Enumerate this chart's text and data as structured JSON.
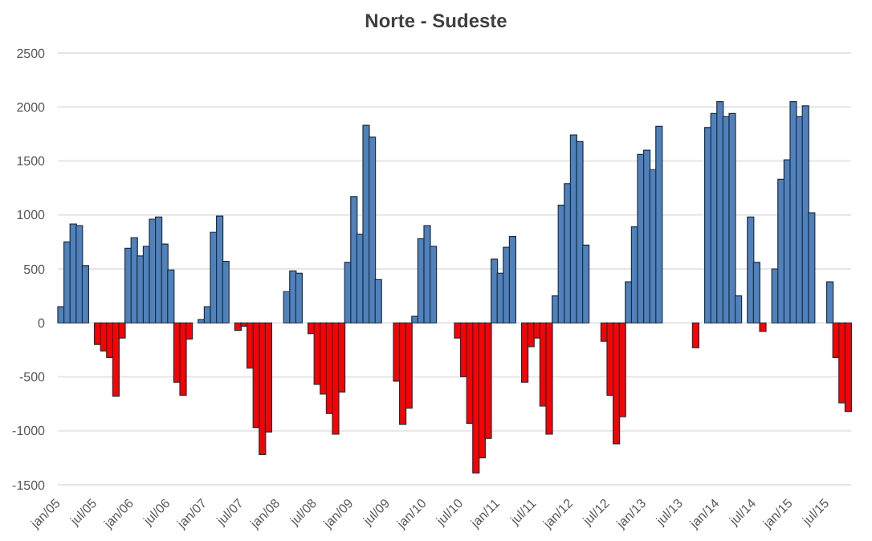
{
  "chart_data": {
    "type": "bar",
    "title": "Norte - Sudeste",
    "stacked": true,
    "grid": "y",
    "ylim": [
      -1500,
      2500
    ],
    "yticks": [
      -1500,
      -1000,
      -500,
      0,
      500,
      1000,
      1500,
      2000,
      2500
    ],
    "categories": [
      "jan/05",
      null,
      null,
      null,
      null,
      null,
      "jul/05",
      null,
      null,
      null,
      null,
      null,
      "jan/06",
      null,
      null,
      null,
      null,
      null,
      "jul/06",
      null,
      null,
      null,
      null,
      null,
      "jan/07",
      null,
      null,
      null,
      null,
      null,
      "jul/07",
      null,
      null,
      null,
      null,
      null,
      "jan/08",
      null,
      null,
      null,
      null,
      null,
      "jul/08",
      null,
      null,
      null,
      null,
      null,
      "jan/09",
      null,
      null,
      null,
      null,
      null,
      "jul/09",
      null,
      null,
      null,
      null,
      null,
      "jan/10",
      null,
      null,
      null,
      null,
      null,
      "jul/10",
      null,
      null,
      null,
      null,
      null,
      "jan/11",
      null,
      null,
      null,
      null,
      null,
      "jul/11",
      null,
      null,
      null,
      null,
      null,
      "jan/12",
      null,
      null,
      null,
      null,
      null,
      "jul/12",
      null,
      null,
      null,
      null,
      null,
      "jan/13",
      null,
      null,
      null,
      null,
      null,
      "jul/13",
      null,
      null,
      null,
      null,
      null,
      "jan/14",
      null,
      null,
      null,
      null,
      null,
      "jul/14",
      null,
      null,
      null,
      null,
      null,
      "jan/15",
      null,
      null,
      null,
      null,
      null,
      "jul/15",
      null,
      null,
      null
    ],
    "series": [
      {
        "color": "#4f81bd",
        "values": [
          150,
          750,
          915,
          900,
          530,
          null,
          null,
          null,
          null,
          null,
          null,
          690,
          790,
          620,
          710,
          960,
          980,
          730,
          490,
          null,
          null,
          null,
          null,
          30,
          150,
          840,
          990,
          570,
          null,
          null,
          null,
          null,
          null,
          null,
          null,
          null,
          null,
          290,
          480,
          460,
          null,
          null,
          null,
          null,
          null,
          null,
          null,
          560,
          1170,
          820,
          1830,
          1720,
          400,
          null,
          null,
          null,
          null,
          null,
          60,
          780,
          900,
          710,
          null,
          null,
          null,
          null,
          null,
          null,
          null,
          null,
          null,
          590,
          460,
          700,
          800,
          null,
          null,
          null,
          null,
          null,
          null,
          250,
          1090,
          1290,
          1740,
          1680,
          720,
          null,
          null,
          null,
          null,
          null,
          null,
          380,
          890,
          1560,
          1600,
          1420,
          1820,
          null,
          null,
          null,
          null,
          null,
          null,
          null,
          1810,
          1940,
          2050,
          1910,
          1940,
          250,
          null,
          980,
          560,
          null,
          null,
          500,
          1330,
          1510,
          2050,
          1910,
          2010,
          1020,
          null,
          null,
          380,
          null,
          null,
          null
        ]
      },
      {
        "color": "#ff0000",
        "values": [
          null,
          null,
          null,
          null,
          null,
          null,
          -200,
          -260,
          -320,
          -680,
          -140,
          null,
          null,
          null,
          null,
          null,
          null,
          null,
          null,
          -550,
          -670,
          -150,
          null,
          null,
          null,
          null,
          null,
          null,
          null,
          -70,
          -30,
          -420,
          -970,
          -1220,
          -1010,
          null,
          null,
          null,
          null,
          null,
          null,
          -100,
          -570,
          -660,
          -840,
          -1030,
          -640,
          null,
          null,
          null,
          null,
          null,
          null,
          null,
          null,
          -540,
          -940,
          -790,
          null,
          null,
          null,
          null,
          null,
          null,
          null,
          -140,
          -500,
          -930,
          -1390,
          -1250,
          -1070,
          null,
          null,
          null,
          null,
          null,
          -550,
          -220,
          -140,
          -770,
          -1030,
          null,
          null,
          null,
          null,
          null,
          null,
          null,
          null,
          -170,
          -670,
          -1120,
          -870,
          null,
          null,
          null,
          null,
          null,
          null,
          null,
          null,
          null,
          null,
          null,
          -230,
          null,
          null,
          null,
          null,
          null,
          null,
          null,
          null,
          null,
          null,
          -80,
          null,
          null,
          null,
          null,
          null,
          null,
          null,
          null,
          null,
          null,
          null,
          -320,
          -740,
          -820
        ]
      }
    ]
  }
}
